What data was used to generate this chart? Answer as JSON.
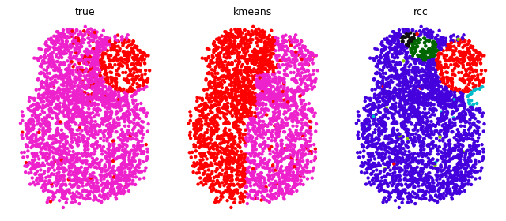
{
  "titles": [
    "true",
    "kmeans",
    "rcc"
  ],
  "n_points": 3000,
  "seed": 7,
  "background": "white",
  "title_fontsize": 9,
  "point_size": 10,
  "alpha": 1.0,
  "colors": {
    "magenta": "#EE22CC",
    "red": "#FF0000",
    "purple": "#4400DD",
    "dark_green": "#006600",
    "black": "#111111",
    "cyan": "#00BBCC",
    "lime": "#88CC00",
    "pink": "#FF88CC"
  }
}
